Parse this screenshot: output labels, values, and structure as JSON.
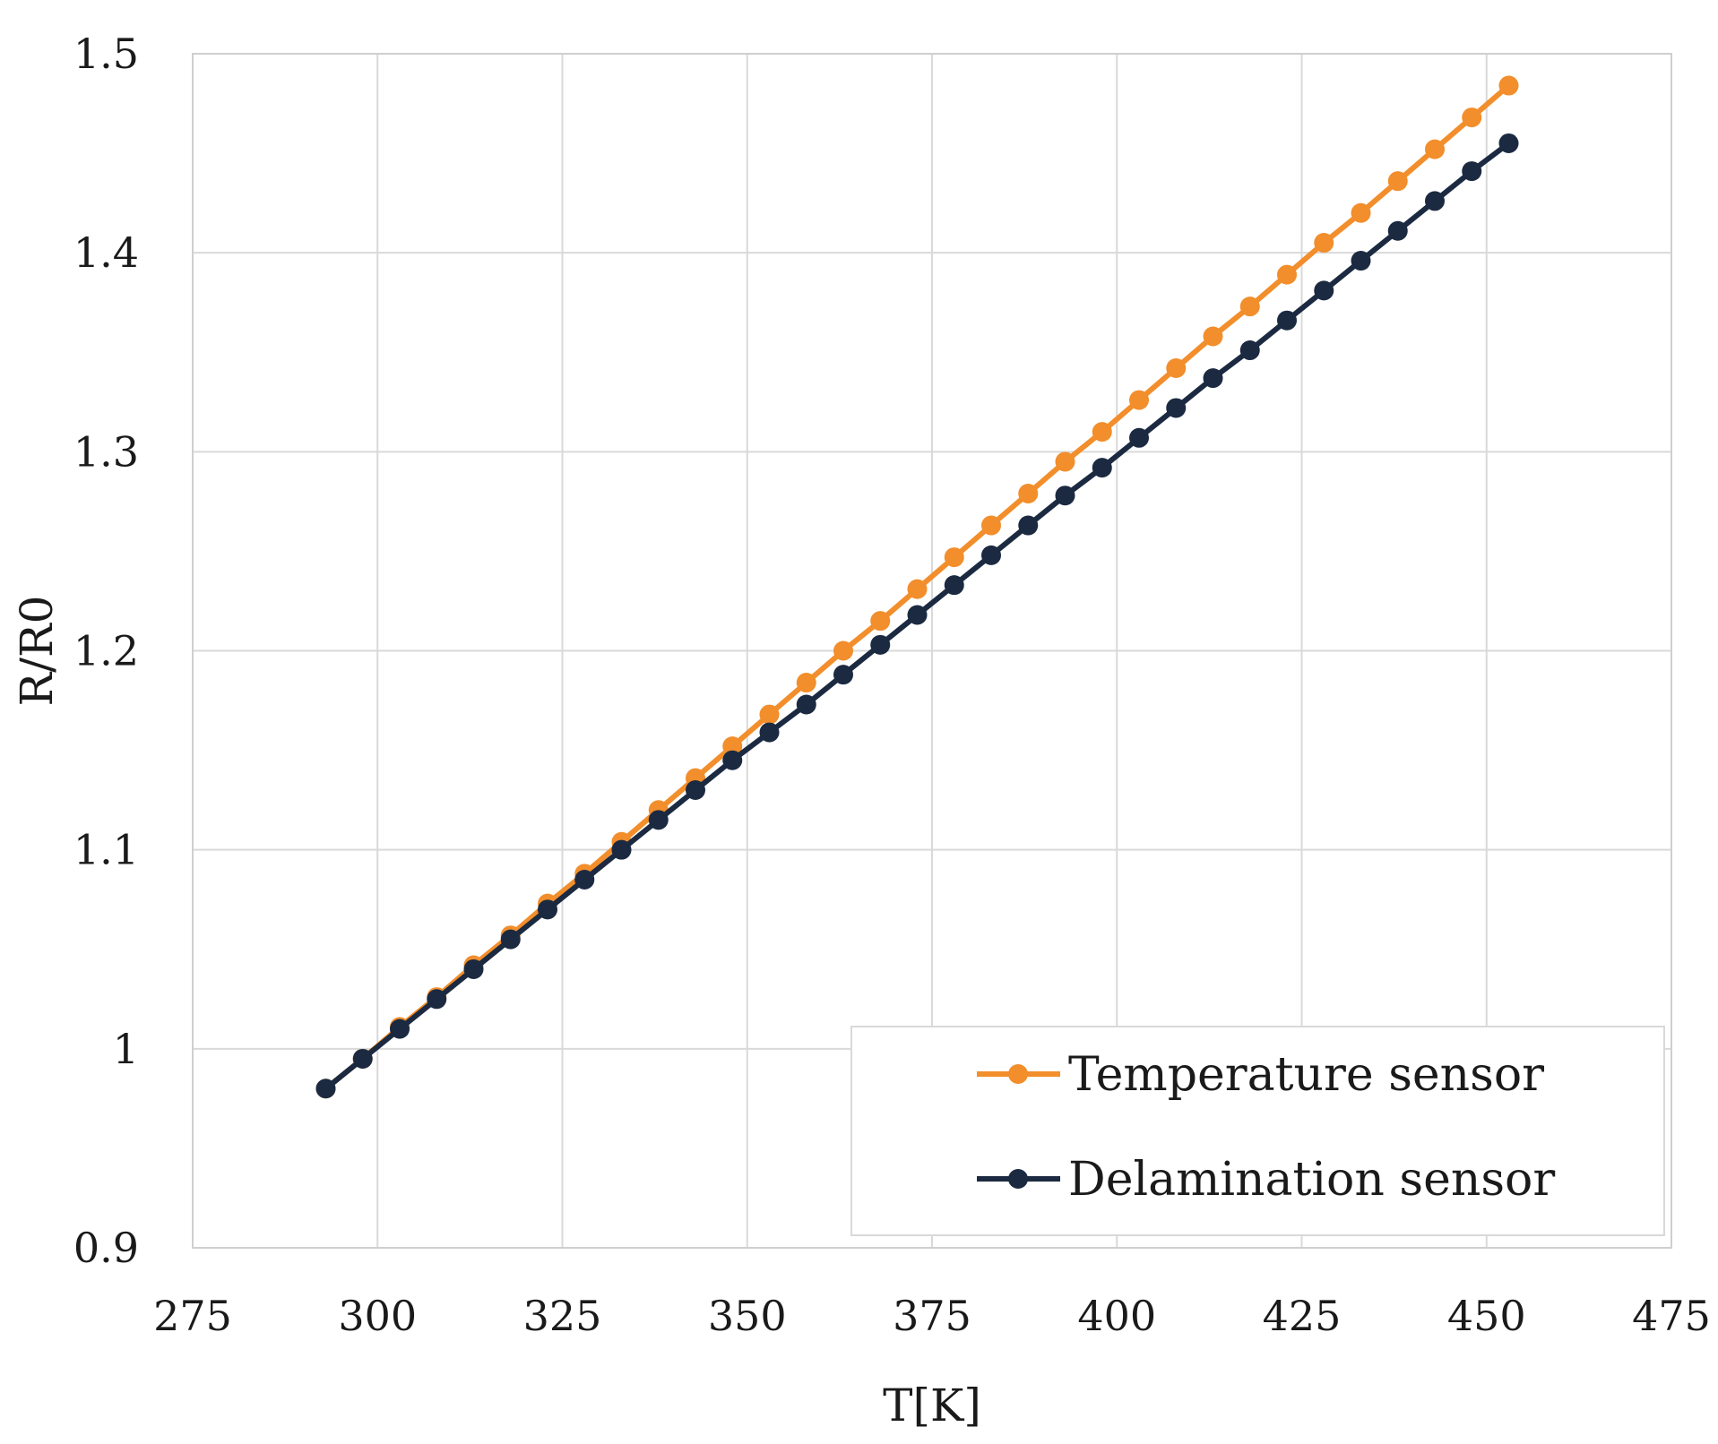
{
  "chart_data": {
    "type": "line",
    "title": "",
    "xlabel": "T[K]",
    "ylabel": "R/R0",
    "xlim": [
      275,
      475
    ],
    "ylim": [
      0.9,
      1.5
    ],
    "xticks": [
      275,
      300,
      325,
      350,
      375,
      400,
      425,
      450,
      475
    ],
    "yticks": [
      0.9,
      1.0,
      1.1,
      1.2,
      1.3,
      1.4,
      1.5
    ],
    "ytick_labels": [
      "0.9",
      "1",
      "1.1",
      "1.2",
      "1.3",
      "1.4",
      "1.5"
    ],
    "grid": true,
    "legend_position": "bottom-right",
    "x": [
      293,
      298,
      303,
      308,
      313,
      318,
      323,
      328,
      333,
      338,
      343,
      348,
      353,
      358,
      363,
      368,
      373,
      378,
      383,
      388,
      393,
      398,
      403,
      408,
      413,
      418,
      423,
      428,
      433,
      438,
      443,
      448,
      453
    ],
    "series": [
      {
        "name": "Temperature sensor",
        "color": "#f28e2b",
        "values": [
          0.98,
          0.995,
          1.011,
          1.026,
          1.042,
          1.057,
          1.073,
          1.088,
          1.104,
          1.12,
          1.136,
          1.152,
          1.168,
          1.184,
          1.2,
          1.215,
          1.231,
          1.247,
          1.263,
          1.279,
          1.295,
          1.31,
          1.326,
          1.342,
          1.358,
          1.373,
          1.389,
          1.405,
          1.42,
          1.436,
          1.452,
          1.468,
          1.484
        ]
      },
      {
        "name": "Delamination sensor",
        "color": "#1b2a41",
        "values": [
          0.98,
          0.995,
          1.01,
          1.025,
          1.04,
          1.055,
          1.07,
          1.085,
          1.1,
          1.115,
          1.13,
          1.145,
          1.159,
          1.173,
          1.188,
          1.203,
          1.218,
          1.233,
          1.248,
          1.263,
          1.278,
          1.292,
          1.307,
          1.322,
          1.337,
          1.351,
          1.366,
          1.381,
          1.396,
          1.411,
          1.426,
          1.441,
          1.455
        ]
      }
    ]
  }
}
